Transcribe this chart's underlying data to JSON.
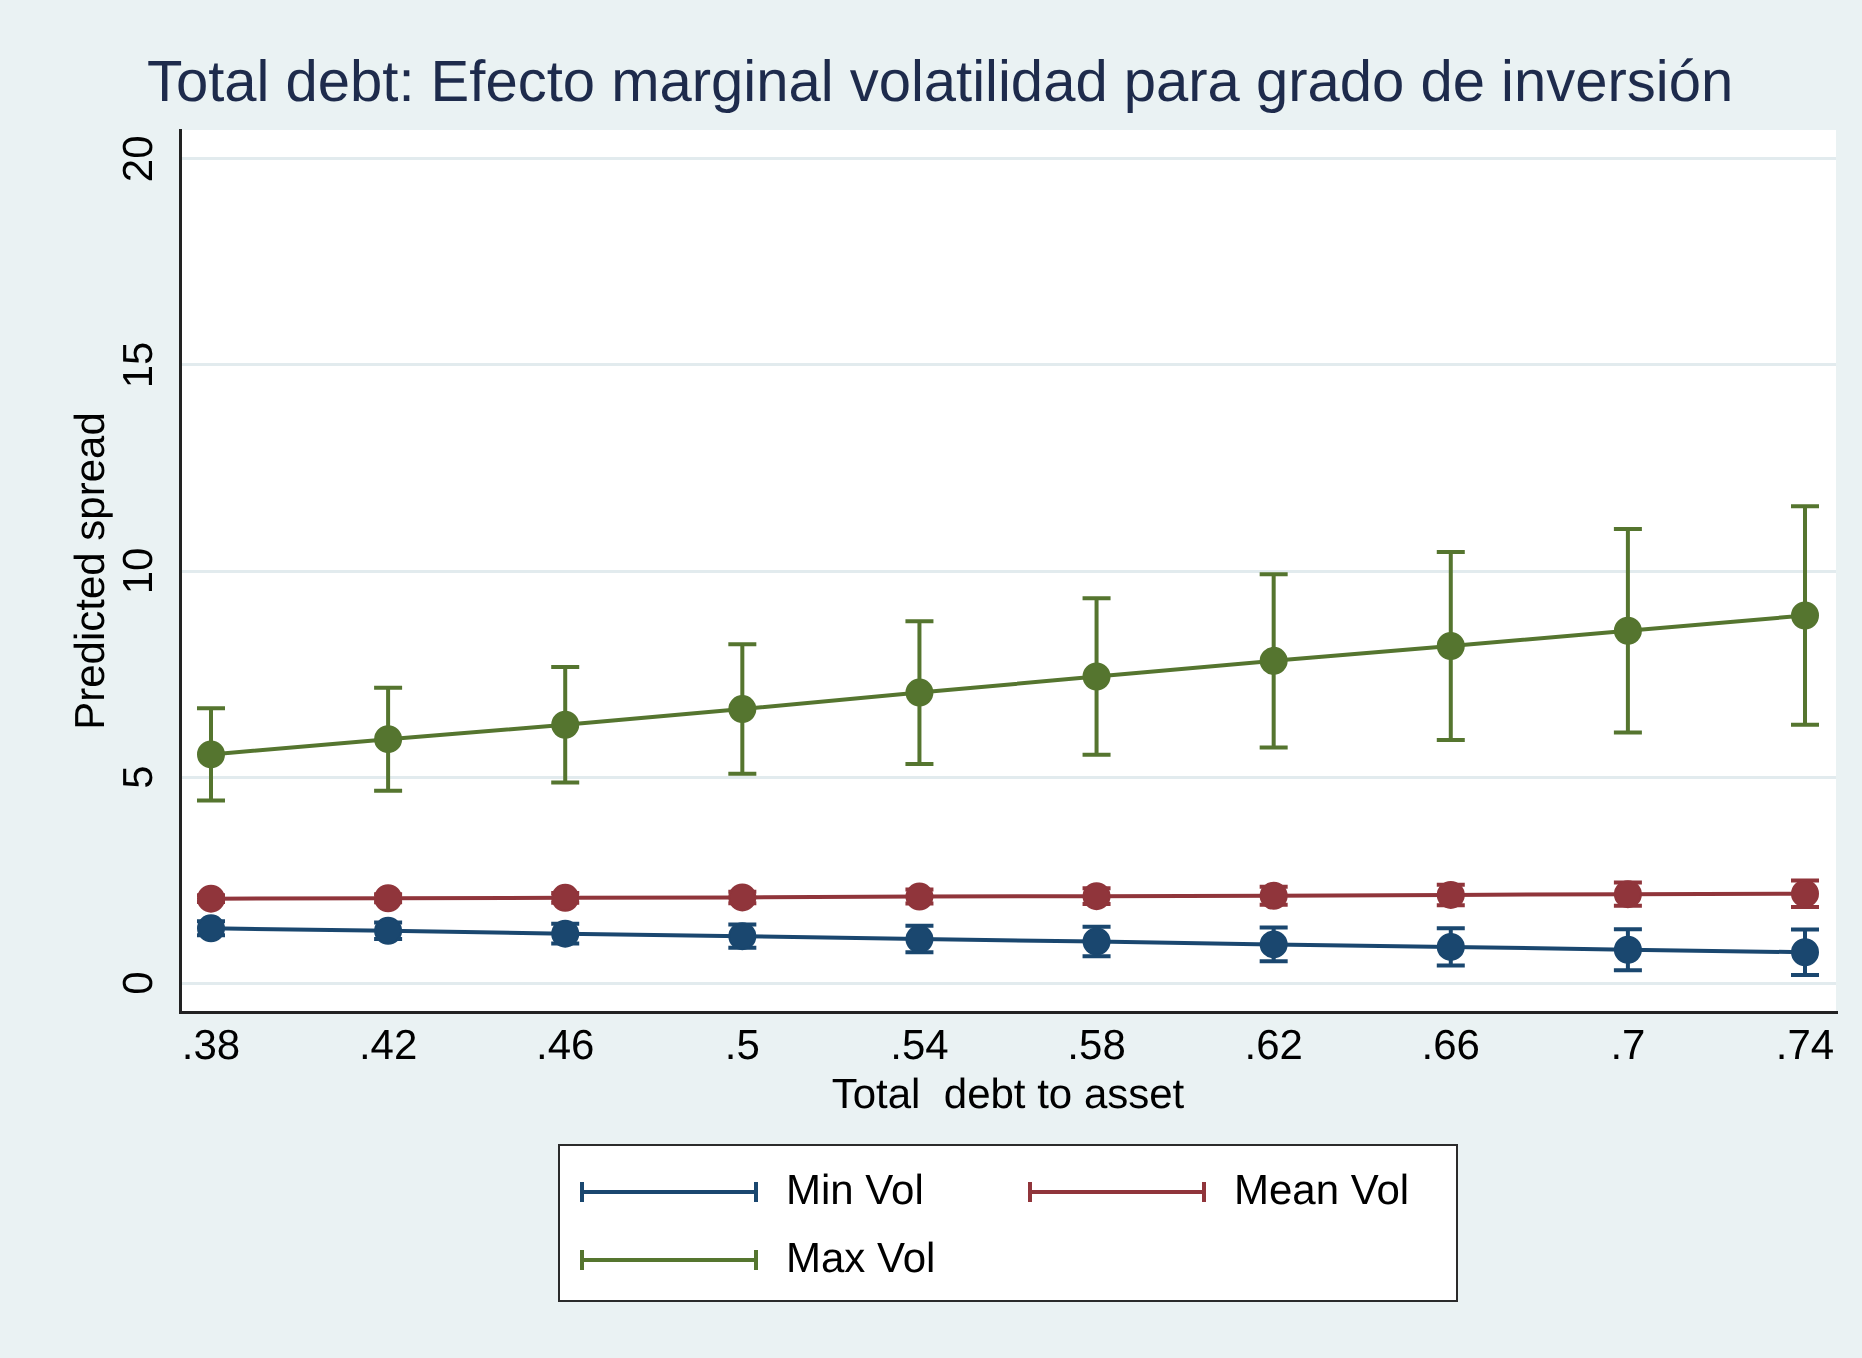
{
  "chart_data": {
    "type": "line",
    "title": "Total debt: Efecto marginal volatilidad para grado de inversión",
    "xlabel": "Total  debt to asset",
    "ylabel": "Predicted spread",
    "x": [
      0.38,
      0.42,
      0.46,
      0.5,
      0.54,
      0.58,
      0.62,
      0.66,
      0.7,
      0.74
    ],
    "xlim": [
      0.373,
      0.747
    ],
    "xticks": [
      {
        "value": 0.38,
        "label": ".38"
      },
      {
        "value": 0.42,
        "label": ".42"
      },
      {
        "value": 0.46,
        "label": ".46"
      },
      {
        "value": 0.5,
        "label": ".5"
      },
      {
        "value": 0.54,
        "label": ".54"
      },
      {
        "value": 0.58,
        "label": ".58"
      },
      {
        "value": 0.62,
        "label": ".62"
      },
      {
        "value": 0.66,
        "label": ".66"
      },
      {
        "value": 0.7,
        "label": ".7"
      },
      {
        "value": 0.74,
        "label": ".74"
      }
    ],
    "ylim": [
      -0.7,
      20.7
    ],
    "yticks": [
      0,
      5,
      10,
      15,
      20
    ],
    "grid": "y",
    "legend": "bottom",
    "marker": "circle",
    "series": [
      {
        "name": "Min Vol",
        "color": "#1a476f",
        "values": [
          1.33,
          1.27,
          1.2,
          1.14,
          1.07,
          1.01,
          0.94,
          0.88,
          0.81,
          0.75
        ],
        "errors": [
          0.17,
          0.2,
          0.24,
          0.28,
          0.32,
          0.36,
          0.41,
          0.45,
          0.5,
          0.55
        ]
      },
      {
        "name": "Mean Vol",
        "color": "#90353b",
        "values": [
          2.05,
          2.06,
          2.07,
          2.08,
          2.1,
          2.11,
          2.12,
          2.14,
          2.16,
          2.17
        ],
        "errors": [
          0.08,
          0.1,
          0.12,
          0.14,
          0.17,
          0.19,
          0.22,
          0.25,
          0.28,
          0.32
        ]
      },
      {
        "name": "Max Vol",
        "color": "#55752f",
        "values": [
          5.55,
          5.92,
          6.27,
          6.65,
          7.05,
          7.44,
          7.82,
          8.18,
          8.55,
          8.92
        ],
        "errors": [
          1.12,
          1.25,
          1.4,
          1.57,
          1.73,
          1.9,
          2.1,
          2.28,
          2.47,
          2.65
        ]
      }
    ]
  }
}
